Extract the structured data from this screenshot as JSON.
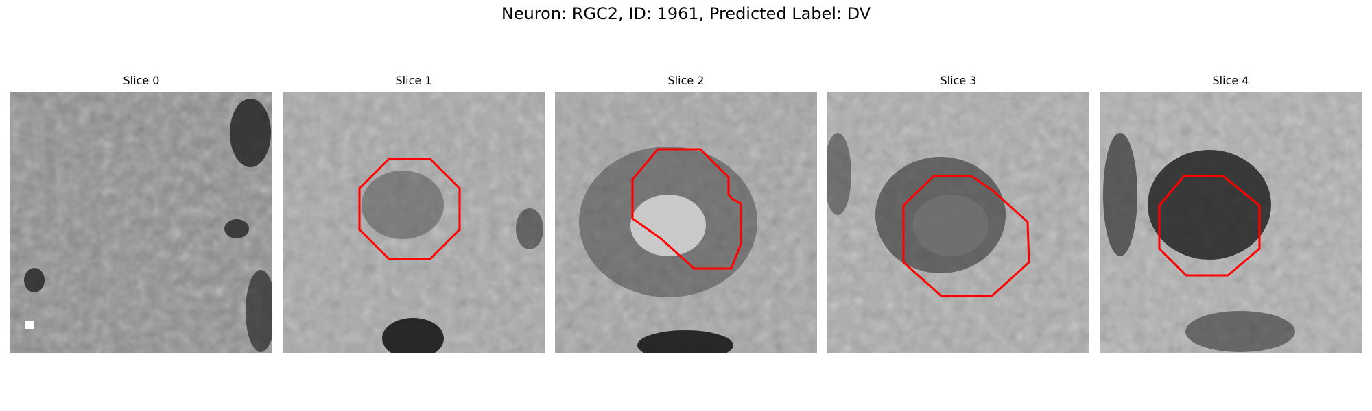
{
  "figure": {
    "title": "Neuron: RGC2, ID: 1961, Predicted Label: DV"
  },
  "colormap": "grayscale",
  "contour_color": "#ff0000",
  "panels": [
    {
      "title": "Slice 0",
      "has_contour": false
    },
    {
      "title": "Slice 1",
      "has_contour": true
    },
    {
      "title": "Slice 2",
      "has_contour": true
    },
    {
      "title": "Slice 3",
      "has_contour": true
    },
    {
      "title": "Slice 4",
      "has_contour": true
    }
  ]
}
